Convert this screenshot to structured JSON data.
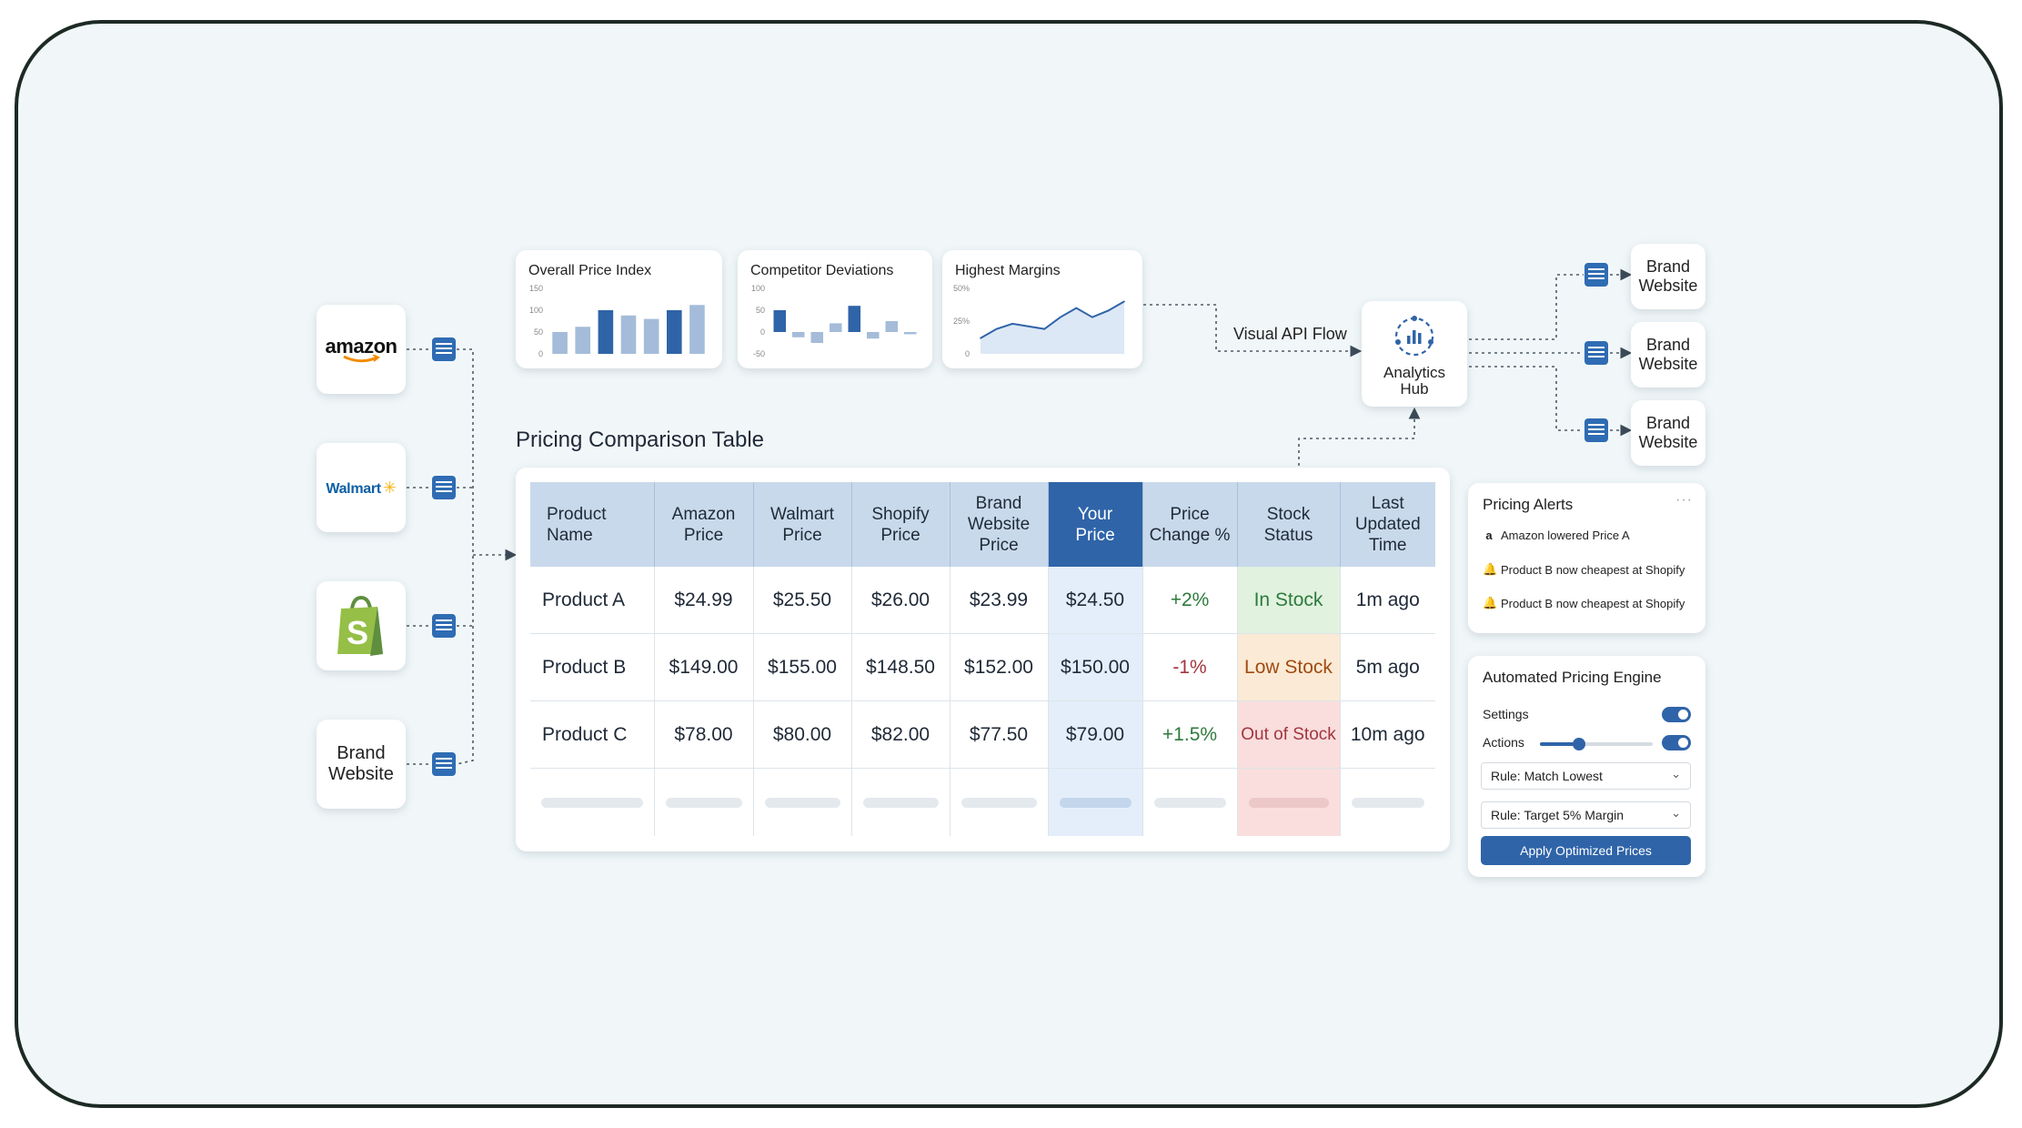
{
  "sources": {
    "amazon_label": "amazon",
    "walmart_label": "Walmart",
    "shopify_glyph": "S",
    "brand_line1": "Brand",
    "brand_line2": "Website"
  },
  "charts": [
    {
      "title": "Overall Price Index",
      "type": "bar",
      "y_ticks": [
        "150",
        "100",
        "50",
        "0"
      ],
      "ylim": [
        0,
        150
      ],
      "values": [
        50,
        62,
        100,
        88,
        80,
        100,
        112
      ],
      "highlight": [
        false,
        false,
        true,
        false,
        false,
        true,
        false
      ]
    },
    {
      "title": "Competitor Deviations",
      "type": "bar",
      "y_ticks": [
        "100",
        "50",
        "0",
        "-50"
      ],
      "ylim": [
        -50,
        100
      ],
      "values": [
        50,
        -12,
        -25,
        20,
        60,
        -15,
        25,
        -5
      ],
      "highlight": [
        true,
        false,
        false,
        false,
        true,
        false,
        false,
        false
      ]
    },
    {
      "title": "Highest Margins",
      "type": "area",
      "y_ticks": [
        "50%",
        "25%",
        "0"
      ],
      "ylim": [
        0,
        50
      ],
      "values": [
        12,
        19,
        23,
        21,
        19,
        28,
        35,
        28,
        33,
        40
      ]
    }
  ],
  "flow": {
    "api_label": "Visual API Flow",
    "hub_line1": "Analytics",
    "hub_line2": "Hub",
    "dest_line1": "Brand",
    "dest_line2": "Website"
  },
  "table": {
    "title": "Pricing Comparison Table",
    "headers": {
      "product": "Product\nName",
      "amazon": "Amazon\nPrice",
      "walmart": "Walmart\nPrice",
      "shopify": "Shopify\nPrice",
      "brand": "Brand\nWebsite\nPrice",
      "your": "Your\nPrice",
      "change": "Price\nChange %",
      "stock": "Stock\nStatus",
      "updated": "Last\nUpdated\nTime"
    },
    "rows": [
      {
        "product": "Product A",
        "amazon": "$24.99",
        "walmart": "$25.50",
        "shopify": "$26.00",
        "brand": "$23.99",
        "your": "$24.50",
        "change": "+2%",
        "stock": "In Stock",
        "updated": "1m ago"
      },
      {
        "product": "Product B",
        "amazon": "$149.00",
        "walmart": "$155.00",
        "shopify": "$148.50",
        "brand": "$152.00",
        "your": "$150.00",
        "change": "-1%",
        "stock": "Low Stock",
        "updated": "5m ago"
      },
      {
        "product": "Product C",
        "amazon": "$78.00",
        "walmart": "$80.00",
        "shopify": "$82.00",
        "brand": "$77.50",
        "your": "$79.00",
        "change": "+1.5%",
        "stock": "Out of Stock",
        "updated": "10m ago"
      }
    ]
  },
  "alerts": {
    "title": "Pricing Alerts",
    "more": "···",
    "items": [
      {
        "icon": "a",
        "text": "Amazon lowered Price A"
      },
      {
        "icon": "bell",
        "text": "Product B now cheapest at Shopify"
      },
      {
        "icon": "bell",
        "text": "Product B now cheapest at Shopify"
      }
    ]
  },
  "engine": {
    "title": "Automated Pricing Engine",
    "settings_label": "Settings",
    "actions_label": "Actions",
    "slider_value": 0.35,
    "rule1": "Rule: Match Lowest",
    "rule2": "Rule: Target 5% Margin",
    "apply_label": "Apply Optimized Prices"
  },
  "colors": {
    "accent": "#2f64a8",
    "bar": "#a4bcd9",
    "bar_highlight": "#2f64a8",
    "frame_border": "#1c2a23",
    "background": "#f1f7f9"
  }
}
